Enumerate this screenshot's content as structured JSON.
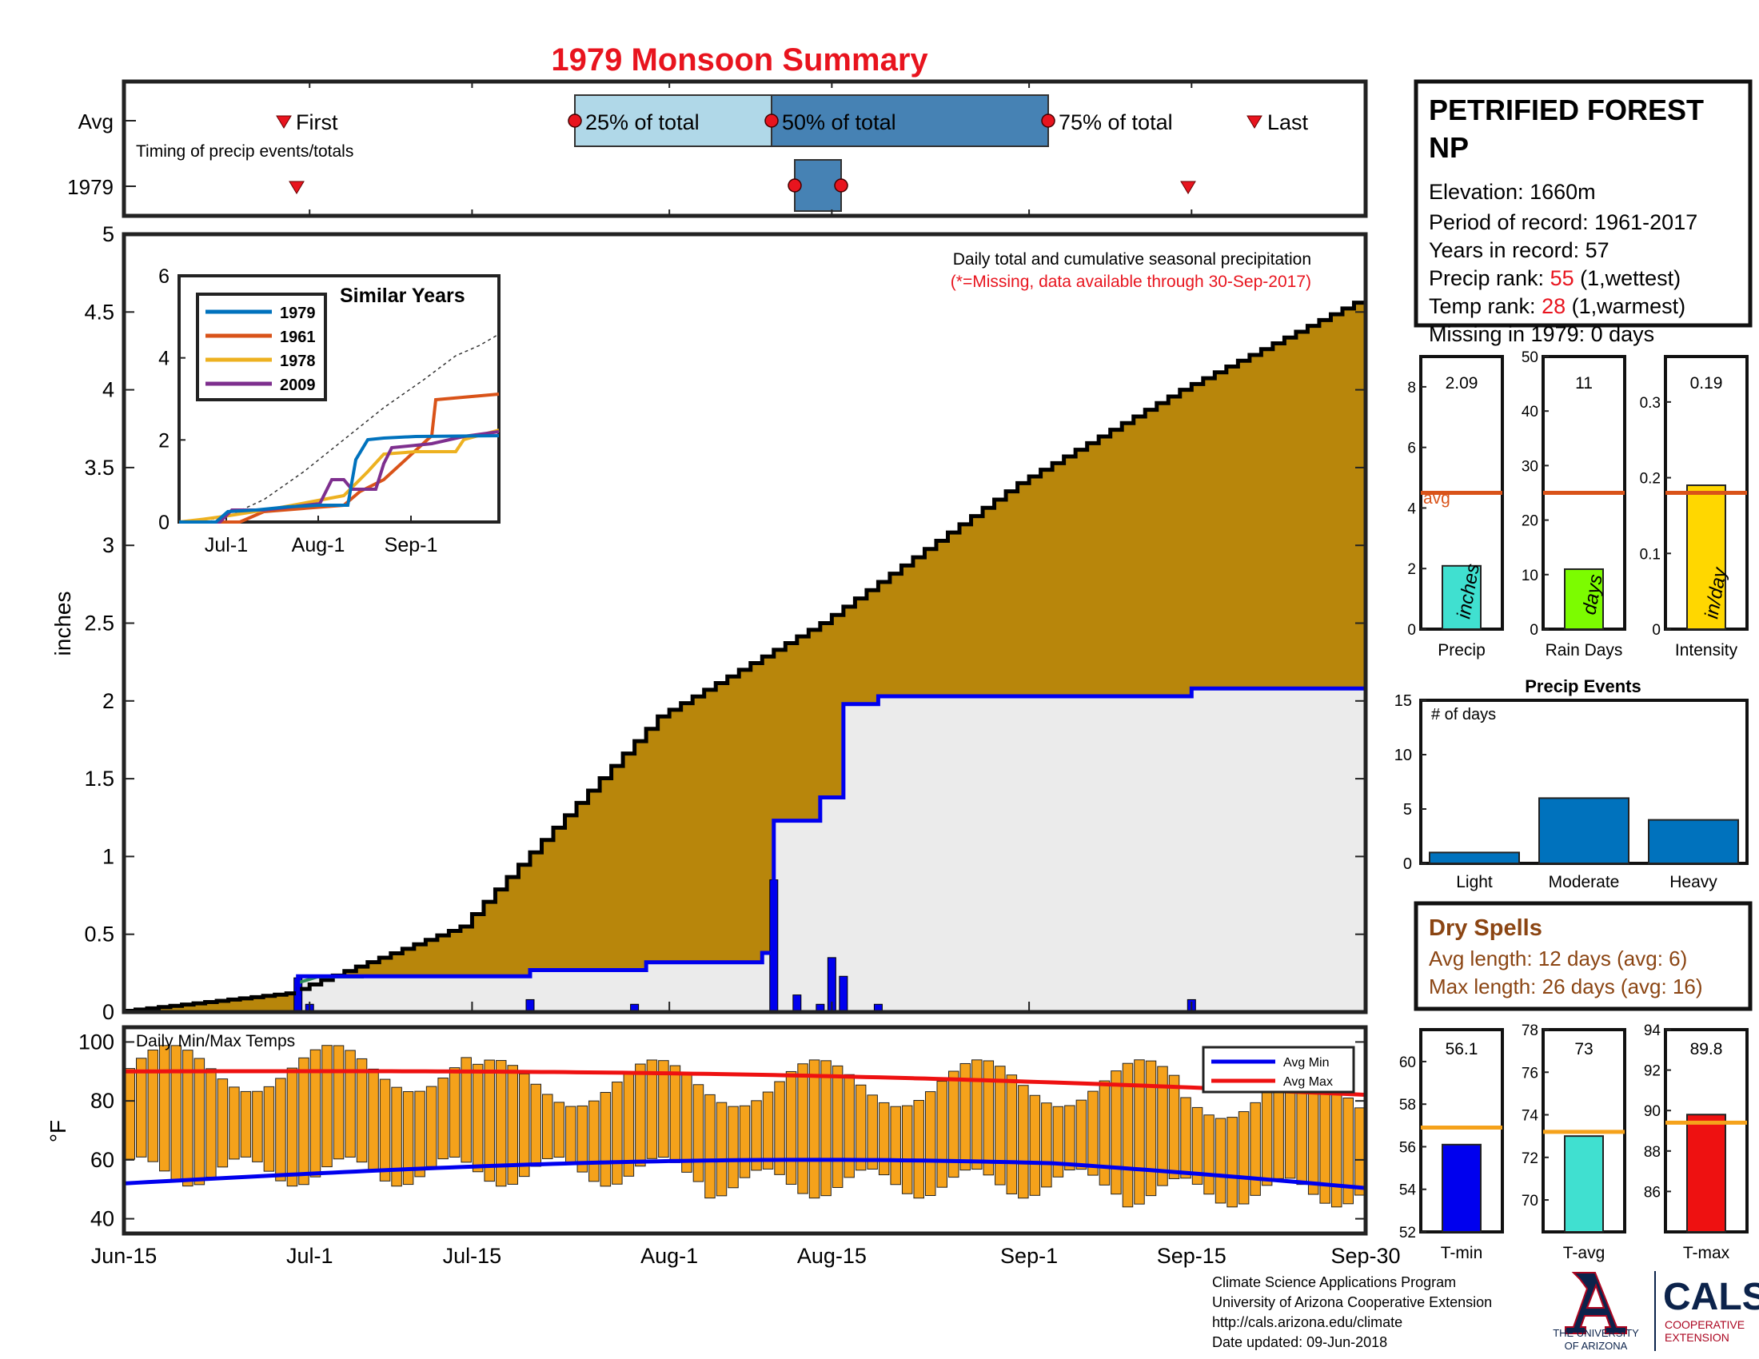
{
  "page": {
    "title": "1979 Monsoon Summary",
    "colors": {
      "title": "#e8141e",
      "red": "#e8141e",
      "brown": "#8b4513",
      "blue": "#0000ee",
      "avgOrange": "#d95319",
      "gold": "#b8860b",
      "barBlue": "#0072bd"
    }
  },
  "timing": {
    "row_avg": "Avg",
    "row_year": "1979",
    "subtitle": "Timing of precip events/totals",
    "first_label": "First",
    "last_label": "Last",
    "p25_label": "25% of total",
    "p50_label": "50% of total",
    "p75_label": "75% of total"
  },
  "station": {
    "name_line1": "PETRIFIED FOREST",
    "name_line2": "NP",
    "elevation": "Elevation: 1660m",
    "period": "Period of record: 1961-2017",
    "years": "Years in record: 57",
    "precip_rank_label": "Precip rank: ",
    "precip_rank_value": "55",
    "precip_rank_note": " (1,wettest)",
    "temp_rank_label": "Temp rank: ",
    "temp_rank_value": "28",
    "temp_rank_note": " (1,warmest)",
    "missing": "Missing in 1979: 0 days"
  },
  "main": {
    "ylabel": "inches",
    "note1": "Daily total and cumulative seasonal precipitation",
    "note2": "(*=Missing, data available through 30-Sep-2017)",
    "yticks": [
      "0",
      "0.5",
      "1",
      "1.5",
      "2",
      "2.5",
      "3",
      "3.5",
      "4",
      "4.5",
      "5"
    ],
    "xticks": [
      "Jun-15",
      "Jul-1",
      "Jul-15",
      "Aug-1",
      "Aug-15",
      "Sep-1",
      "Sep-15",
      "Sep-30"
    ]
  },
  "inset": {
    "title": "Similar Years",
    "yticks": [
      "0",
      "2",
      "4",
      "6"
    ],
    "xticks": [
      "Jul-1",
      "Aug-1",
      "Sep-1"
    ],
    "legend": [
      "1979",
      "1961",
      "1978",
      "2009"
    ]
  },
  "temps": {
    "title": "Daily Min/Max Temps",
    "ylabel": "°F",
    "yticks": [
      "40",
      "60",
      "80",
      "100"
    ],
    "legend_min": "Avg Min",
    "legend_max": "Avg Max"
  },
  "small_bars": {
    "precip": {
      "label": "Precip",
      "value_text": "2.09",
      "unit": "inches",
      "value": 2.09,
      "avg": 4.5,
      "yticks": [
        "0",
        "2",
        "4",
        "6",
        "8"
      ],
      "avg_label": "avg"
    },
    "raindays": {
      "label": "Rain Days",
      "value_text": "11",
      "unit": "days",
      "value": 11,
      "avg": 25,
      "yticks": [
        "0",
        "10",
        "20",
        "30",
        "40",
        "50"
      ]
    },
    "intensity": {
      "label": "Intensity",
      "value_text": "0.19",
      "unit": "in/day",
      "value": 0.19,
      "avg": 0.18,
      "yticks": [
        "0",
        "0.1",
        "0.2",
        "0.3"
      ]
    }
  },
  "events": {
    "title": "Precip Events",
    "ylabel": "# of days",
    "yticks": [
      "0",
      "5",
      "10",
      "15"
    ],
    "categories": [
      "Light",
      "Moderate",
      "Heavy"
    ],
    "values": [
      1,
      6,
      4
    ]
  },
  "dry_spells": {
    "title": "Dry Spells",
    "avg_length": "Avg length: 12 days (avg: 6)",
    "max_length": "Max length: 26 days (avg: 16)"
  },
  "temp_bars": {
    "tmin": {
      "label": "T-min",
      "value_text": "56.1",
      "value": 56.1,
      "avg": 56.9,
      "yticks": [
        "52",
        "54",
        "56",
        "58",
        "60"
      ],
      "ymin": 52,
      "ymax": 61.5
    },
    "tavg": {
      "label": "T-avg",
      "value_text": "73",
      "value": 73,
      "avg": 73.2,
      "yticks": [
        "70",
        "72",
        "74",
        "76",
        "78"
      ],
      "ymin": 68.5,
      "ymax": 78
    },
    "tmax": {
      "label": "T-max",
      "value_text": "89.8",
      "value": 89.8,
      "avg": 89.4,
      "yticks": [
        "86",
        "88",
        "90",
        "92",
        "94"
      ],
      "ymin": 84,
      "ymax": 94
    }
  },
  "footer": {
    "line1": "Climate Science Applications Program",
    "line2": "University of Arizona Cooperative Extension",
    "line3": "http://cals.arizona.edu/climate",
    "line4": " Date updated: 09-Jun-2018",
    "ua_line1": "THE UNIVERSITY",
    "ua_line2": "OF ARIZONA",
    "cals": "CALS",
    "cals_sub1": "COOPERATIVE",
    "cals_sub2": "EXTENSION"
  },
  "chart_data": [
    {
      "type": "area",
      "title": "Daily total and cumulative seasonal precipitation",
      "ylabel": "inches",
      "xlim": [
        "Jun-15",
        "Sep-30"
      ],
      "ylim": [
        0,
        5
      ],
      "series": [
        {
          "name": "",
          "x": [
            "Jun-15",
            "Jun-30",
            "Jul-15",
            "Aug-1",
            "Aug-15",
            "Sep-1",
            "Sep-15",
            "Sep-30"
          ],
          "values": [
            0,
            0.12,
            0.55,
            1.9,
            2.5,
            3.4,
            4.0,
            4.56
          ]
        },
        {
          "name": "",
          "x": [
            "Jun-15",
            "Jun-29",
            "Jun-30",
            "Jul-20",
            "Jul-30",
            "Aug-9",
            "Aug-10",
            "Aug-14",
            "Aug-16",
            "Aug-19",
            "Sep-15",
            "Sep-30"
          ],
          "values": [
            0,
            0,
            0.23,
            0.27,
            0.32,
            0.38,
            1.23,
            1.38,
            1.98,
            2.03,
            2.08,
            2.08
          ]
        }
      ],
      "daily_bars": {
        "x": [
          "Jun-30",
          "Jul-1",
          "Jul-20",
          "Jul-29",
          "Aug-10",
          "Aug-12",
          "Aug-14",
          "Aug-15",
          "Aug-16",
          "Aug-19",
          "Sep-15"
        ],
        "values": [
          0.22,
          0.05,
          0.08,
          0.05,
          0.85,
          0.11,
          0.05,
          0.35,
          0.23,
          0.05,
          0.08
        ]
      }
    },
    {
      "type": "line",
      "title": "Similar Years",
      "ylim": [
        0,
        6
      ],
      "series": [
        {
          "name": "1979",
          "values": [
            0,
            0.2,
            2.0,
            2.08,
            2.1
          ]
        },
        {
          "name": "1961",
          "values": [
            0,
            0.1,
            1.0,
            3.1,
            3.2
          ]
        },
        {
          "name": "1978",
          "values": [
            0,
            0.2,
            1.2,
            1.7,
            2.3
          ]
        },
        {
          "name": "2009",
          "values": [
            0,
            0.3,
            1.8,
            2.0,
            2.15
          ]
        }
      ]
    },
    {
      "type": "bar",
      "title": "Daily Min/Max Temps",
      "ylabel": "°F",
      "ylim": [
        35,
        105
      ],
      "series": [
        {
          "name": "Avg Min",
          "x": [
            "Jun-15",
            "Jul-15",
            "Aug-15",
            "Sep-15",
            "Sep-30"
          ],
          "values": [
            52,
            59,
            60,
            54,
            47
          ]
        },
        {
          "name": "Avg Max",
          "x": [
            "Jun-15",
            "Jul-15",
            "Aug-15",
            "Sep-15",
            "Sep-30"
          ],
          "values": [
            90,
            93,
            89,
            84,
            81
          ]
        }
      ]
    },
    {
      "type": "bar",
      "title": "Precip Events",
      "categories": [
        "Light",
        "Moderate",
        "Heavy"
      ],
      "values": [
        1,
        6,
        4
      ],
      "ylim": [
        0,
        15
      ]
    }
  ]
}
